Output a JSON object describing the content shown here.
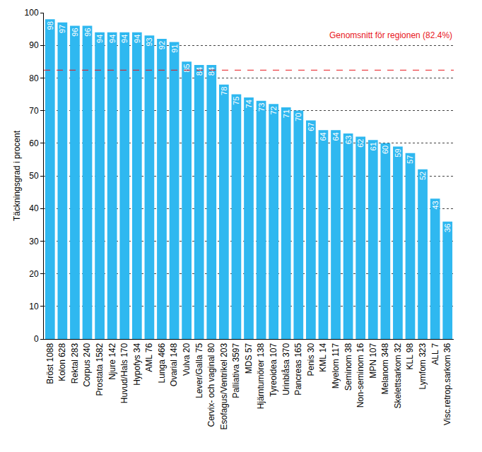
{
  "chart_data": {
    "type": "bar",
    "ylabel": "Täckningsgrad i procent",
    "categories": [
      "Bröst 1088",
      "Kolon 628",
      "Rektal 283",
      "Corpus 240",
      "Prostata 1582",
      "Njure 142",
      "Huvud/Hals 170",
      "Hypofys 34",
      "AML 76",
      "Lunga 466",
      "Ovarial 148",
      "Vulva 20",
      "Lever/Galla 75",
      "Cervix- och vaginal 80",
      "Esofagus/Ventrikel 203",
      "Palliativa 3597",
      "MDS 57",
      "Hjärntumörer 138",
      "Tyreoidea 107",
      "Urinblåsa 370",
      "Pancreas 165",
      "Penis 30",
      "KML 14",
      "Myelom 117",
      "Seminom 38",
      "Non-seminom 16",
      "MPN 107",
      "Melanom 348",
      "Skelettsarkom 32",
      "KLL 98",
      "Lymfom 323",
      "ALL 7",
      "Visc.retrop.sarkom 36"
    ],
    "values": [
      98,
      97,
      96,
      96,
      94,
      94,
      94,
      94,
      93,
      92,
      91,
      85,
      84,
      84,
      78,
      75,
      74,
      73,
      72,
      71,
      70,
      67,
      64,
      64,
      63,
      62,
      61,
      60,
      59,
      57,
      52,
      43,
      36
    ],
    "color": "#2fb8f0",
    "ylim": [
      0,
      100
    ],
    "yticks": [
      0,
      10,
      20,
      30,
      40,
      50,
      60,
      70,
      80,
      90,
      100
    ],
    "grid": true,
    "data_labels": true,
    "reference_line": {
      "value": 82.4,
      "label": "Genomsnitt för regionen (82.4%)",
      "color": "#e8141c"
    }
  }
}
